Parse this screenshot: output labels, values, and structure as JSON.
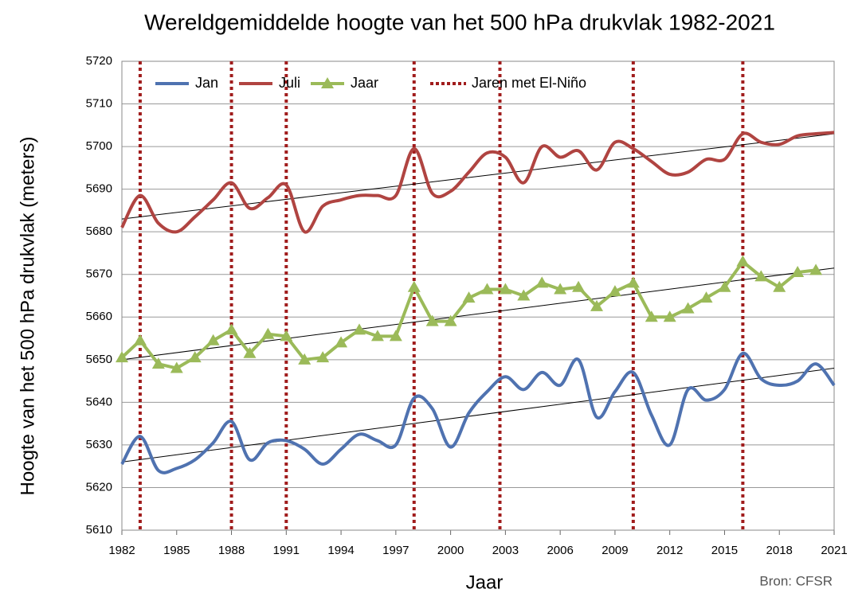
{
  "chart_data": {
    "type": "line",
    "title": "Wereldgemiddelde hoogte van het 500 hPa drukvlak 1982-2021",
    "x_label": "Jaar",
    "y_label": "Hoogte van het 500 hPa drukvlak (meters)",
    "source": "Bron: CFSR",
    "x": [
      1982,
      1983,
      1984,
      1985,
      1986,
      1987,
      1988,
      1989,
      1990,
      1991,
      1992,
      1993,
      1994,
      1995,
      1996,
      1997,
      1998,
      1999,
      2000,
      2001,
      2002,
      2003,
      2004,
      2005,
      2006,
      2007,
      2008,
      2009,
      2010,
      2011,
      2012,
      2013,
      2014,
      2015,
      2016,
      2017,
      2018,
      2019,
      2020,
      2021
    ],
    "series": [
      {
        "name": "Jan",
        "color": "#4f72b0",
        "smooth": true,
        "markers": false,
        "values": [
          5625.5,
          5632,
          5624,
          5624.5,
          5626.5,
          5630.5,
          5635.5,
          5626.5,
          5630.5,
          5631,
          5629,
          5625.5,
          5629,
          5632.5,
          5631,
          5630,
          5641,
          5638.5,
          5629.5,
          5637.5,
          5642.5,
          5646,
          5643,
          5647,
          5644,
          5650,
          5636.5,
          5642.5,
          5647,
          5637,
          5630,
          5643,
          5640.5,
          5643,
          5651.5,
          5645.5,
          5644,
          5645,
          5649,
          5644
        ]
      },
      {
        "name": "Juli",
        "color": "#b04441",
        "smooth": true,
        "markers": false,
        "values": [
          5681,
          5688.5,
          5682,
          5680,
          5683.5,
          5687.5,
          5691.5,
          5685.5,
          5688,
          5691,
          5680,
          5686,
          5687.5,
          5688.5,
          5688.5,
          5688.5,
          5699.5,
          5689,
          5689.5,
          5694,
          5698.5,
          5697.5,
          5691.5,
          5700,
          5697.5,
          5699,
          5694.5,
          5701,
          5699.5,
          5696.5,
          5693.5,
          5694,
          5697,
          5697,
          5703,
          5701,
          5700.5,
          5702.5,
          5703,
          5703.3
        ]
      },
      {
        "name": "Jaar",
        "color": "#9bba59",
        "smooth": false,
        "markers": true,
        "values": [
          5650.5,
          5654.5,
          5649,
          5648,
          5650.5,
          5654.5,
          5657,
          5651.5,
          5656,
          5655.5,
          5650,
          5650.5,
          5654,
          5657,
          5655.5,
          5655.5,
          5667,
          5659,
          5659,
          5664.5,
          5666.5,
          5666.5,
          5665,
          5668,
          5666.5,
          5667,
          5662.5,
          5666,
          5668,
          5660,
          5660,
          5662,
          5664.5,
          5667,
          5673,
          5669.5,
          5667,
          5670.5,
          5671,
          null
        ]
      }
    ],
    "trendlines": [
      {
        "x": [
          1982,
          2021
        ],
        "values": [
          5626,
          5648
        ]
      },
      {
        "x": [
          1982,
          2021
        ],
        "values": [
          5683,
          5703
        ]
      },
      {
        "x": [
          1982,
          2021
        ],
        "values": [
          5650,
          5671.5
        ]
      }
    ],
    "el_nino": {
      "name": "Jaren met El-Niño",
      "color": "#a01c1c",
      "years": [
        1983,
        1988,
        1991,
        1998,
        2002.7,
        2010,
        2016
      ]
    },
    "xlim": [
      1982,
      2021
    ],
    "xticks": [
      1982,
      1985,
      1988,
      1991,
      1994,
      1997,
      2000,
      2003,
      2006,
      2009,
      2012,
      2015,
      2018,
      2021
    ],
    "ylim": [
      5610,
      5720
    ],
    "yticks": [
      5610,
      5620,
      5630,
      5640,
      5650,
      5660,
      5670,
      5680,
      5690,
      5700,
      5710,
      5720
    ],
    "grid": true
  }
}
